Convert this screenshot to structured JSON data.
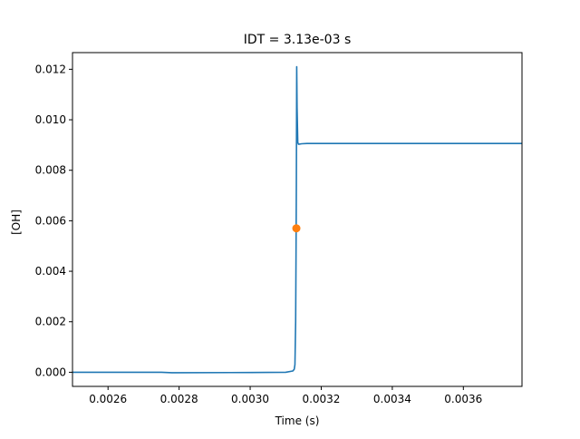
{
  "chart_data": {
    "type": "line",
    "title": "IDT = 3.13e-03 s",
    "xlabel": "Time (s)",
    "ylabel": "[OH]",
    "xlim": [
      0.0025,
      0.003765
    ],
    "ylim": [
      -0.00056,
      0.01266
    ],
    "grid": false,
    "x_ticks": [
      0.0026,
      0.0028,
      0.003,
      0.0032,
      0.0034,
      0.0036
    ],
    "x_tick_labels": [
      "0.0026",
      "0.0028",
      "0.0030",
      "0.0032",
      "0.0034",
      "0.0036"
    ],
    "y_ticks": [
      0.0,
      0.002,
      0.004,
      0.006,
      0.008,
      0.01,
      0.012
    ],
    "y_tick_labels": [
      "0.000",
      "0.002",
      "0.004",
      "0.006",
      "0.008",
      "0.010",
      "0.012"
    ],
    "series": [
      {
        "color": "#1f77b4",
        "x": [
          0.0025,
          0.00275,
          0.00278,
          0.003,
          0.0031,
          0.00312,
          0.003124,
          0.003126,
          0.003128,
          0.003129,
          0.00313,
          0.003131,
          0.003132,
          0.003134,
          0.003136,
          0.003145,
          0.00316,
          0.0032,
          0.0034,
          0.003765
        ],
        "y": [
          0.0,
          0.0,
          -2e-05,
          -1e-05,
          0.0,
          5e-05,
          0.00012,
          0.0003,
          0.002,
          0.0045,
          0.0075,
          0.0121,
          0.0105,
          0.0091,
          0.00903,
          0.00905,
          0.00906,
          0.00906,
          0.00906,
          0.00906
        ]
      }
    ],
    "markers": [
      {
        "x": 0.00313,
        "y": 0.0057,
        "color": "#ff7f0e"
      }
    ]
  }
}
